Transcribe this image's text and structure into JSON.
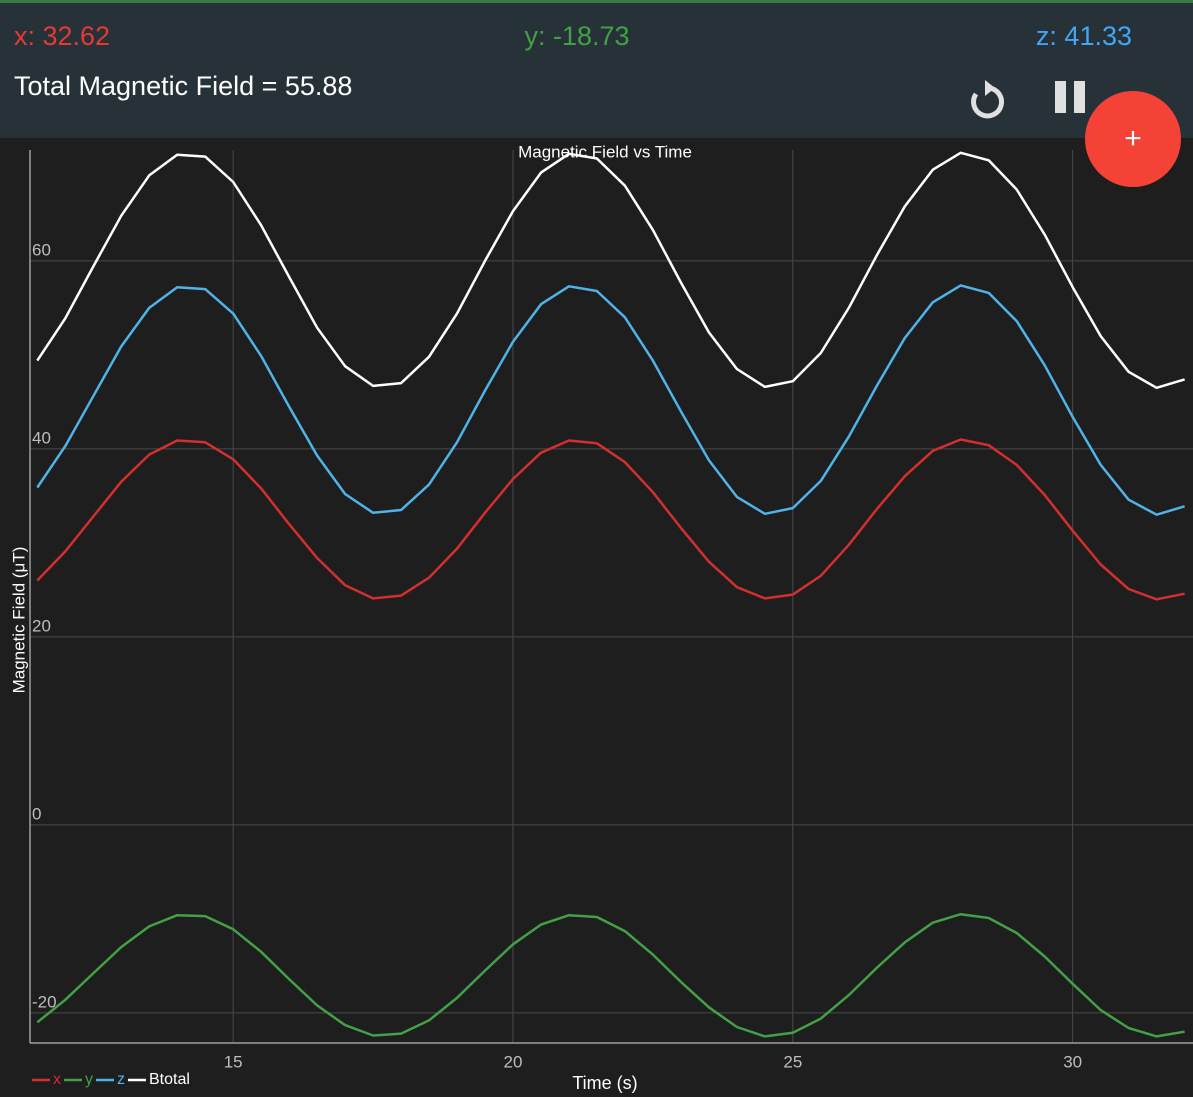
{
  "header": {
    "readout_x": "x: 32.62",
    "readout_y": "y: -18.73",
    "readout_z": "z: 41.33",
    "total": "Total Magnetic Field = 55.88",
    "fab_label": "+"
  },
  "chart_data": {
    "type": "line",
    "title": "Magnetic Field vs Time",
    "x_label": "Time (s)",
    "y_label": "Magnetic Field (μT)",
    "x": [
      11.5,
      12,
      12.5,
      13,
      13.5,
      14,
      14.5,
      15,
      15.5,
      16,
      16.5,
      17,
      17.5,
      18,
      18.5,
      19,
      19.5,
      20,
      20.5,
      21,
      21.5,
      22,
      22.5,
      23,
      23.5,
      24,
      24.5,
      25,
      25.5,
      26,
      26.5,
      27,
      27.5,
      28,
      28.5,
      29,
      29.5,
      30,
      30.5,
      31,
      31.5,
      32
    ],
    "series": [
      {
        "name": "x",
        "color": "#d32f2f",
        "values": [
          26.0,
          29.1,
          32.8,
          36.5,
          39.4,
          40.9,
          40.7,
          38.9,
          35.8,
          32.0,
          28.4,
          25.5,
          24.1,
          24.4,
          26.3,
          29.4,
          33.2,
          36.8,
          39.6,
          40.9,
          40.6,
          38.6,
          35.4,
          31.6,
          28.0,
          25.3,
          24.1,
          24.5,
          26.5,
          29.8,
          33.6,
          37.1,
          39.8,
          41.0,
          40.4,
          38.3,
          35.1,
          31.3,
          27.7,
          25.1,
          24.0,
          24.6
        ]
      },
      {
        "name": "y",
        "color": "#43a047",
        "values": [
          -21.0,
          -18.6,
          -15.8,
          -13.0,
          -10.8,
          -9.6,
          -9.7,
          -11.1,
          -13.5,
          -16.4,
          -19.2,
          -21.3,
          -22.4,
          -22.2,
          -20.8,
          -18.4,
          -15.5,
          -12.7,
          -10.6,
          -9.6,
          -9.8,
          -11.3,
          -13.8,
          -16.7,
          -19.4,
          -21.5,
          -22.5,
          -22.1,
          -20.6,
          -18.1,
          -15.2,
          -12.5,
          -10.4,
          -9.5,
          -9.9,
          -11.5,
          -14.0,
          -16.9,
          -19.7,
          -21.6,
          -22.5,
          -22.0
        ]
      },
      {
        "name": "z",
        "color": "#4fb3e8",
        "values": [
          35.9,
          40.3,
          45.6,
          50.9,
          55.0,
          57.2,
          57.0,
          54.4,
          49.9,
          44.5,
          39.3,
          35.2,
          33.2,
          33.5,
          36.2,
          40.7,
          46.2,
          51.4,
          55.4,
          57.3,
          56.8,
          54.0,
          49.4,
          44.0,
          38.8,
          34.9,
          33.1,
          33.7,
          36.6,
          41.3,
          46.7,
          51.8,
          55.6,
          57.4,
          56.6,
          53.6,
          48.9,
          43.4,
          38.3,
          34.6,
          33.0,
          33.9
        ]
      },
      {
        "name": "Btotal",
        "color": "#ffffff",
        "values": [
          49.4,
          53.9,
          59.4,
          64.8,
          69.1,
          71.3,
          71.1,
          68.4,
          63.8,
          58.3,
          52.9,
          48.8,
          46.7,
          47.0,
          49.8,
          54.4,
          60.0,
          65.3,
          69.4,
          71.4,
          70.9,
          68.0,
          63.3,
          57.7,
          52.4,
          48.5,
          46.6,
          47.2,
          50.2,
          55.0,
          60.6,
          65.8,
          69.7,
          71.5,
          70.7,
          67.6,
          62.8,
          57.2,
          52.0,
          48.2,
          46.5,
          47.4
        ]
      }
    ],
    "xlim": [
      11.37,
      32.15
    ],
    "xticks": [
      15,
      20,
      25,
      30
    ],
    "ylim": [
      -23.2,
      71.8
    ],
    "yticks": [
      -20,
      0,
      20,
      40,
      60
    ],
    "grid": true,
    "legend": "bottom-left"
  }
}
